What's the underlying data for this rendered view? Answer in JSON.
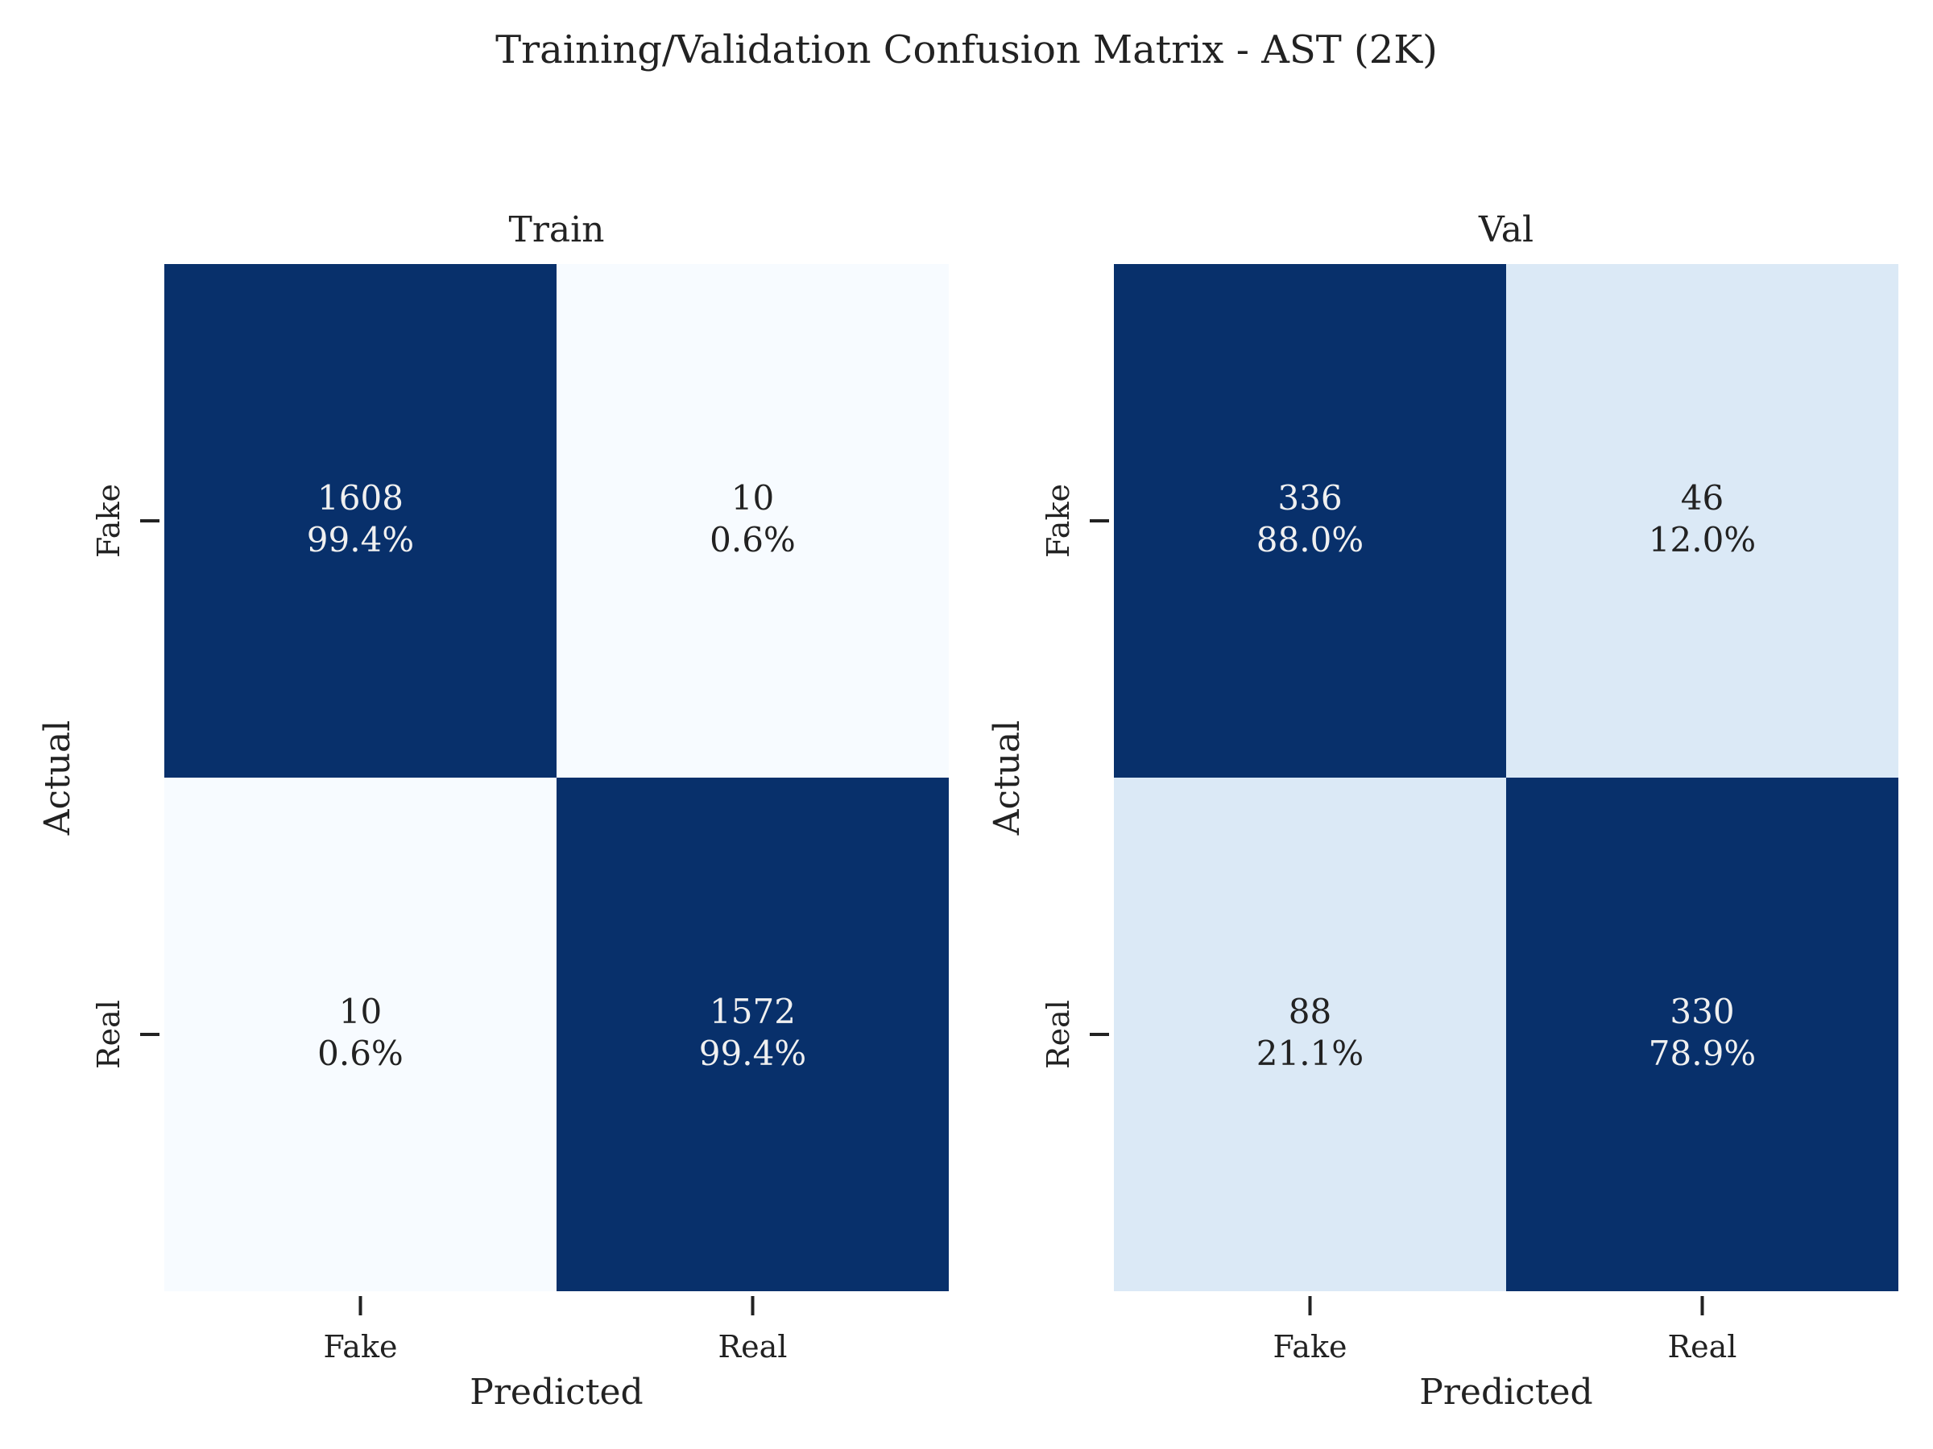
{
  "chart_data": {
    "title": "Training/Validation Confusion Matrix - AST (2K)",
    "colors": {
      "high": "#08306b",
      "mid": "#dbe9f6",
      "low": "#f7fbff",
      "text_dark": "#222222",
      "text_light": "#f0f0f0"
    },
    "panels": [
      {
        "type": "heatmap",
        "title": "Train",
        "xlabel": "Predicted",
        "ylabel": "Actual",
        "x_tick_labels": [
          "Fake",
          "Real"
        ],
        "y_tick_labels": [
          "Fake",
          "Real"
        ],
        "counts": [
          [
            1608,
            10
          ],
          [
            10,
            1572
          ]
        ],
        "percent_labels": [
          [
            "99.4%",
            "0.6%"
          ],
          [
            "0.6%",
            "99.4%"
          ]
        ]
      },
      {
        "type": "heatmap",
        "title": "Val",
        "xlabel": "Predicted",
        "ylabel": "Actual",
        "x_tick_labels": [
          "Fake",
          "Real"
        ],
        "y_tick_labels": [
          "Fake",
          "Real"
        ],
        "counts": [
          [
            336,
            46
          ],
          [
            88,
            330
          ]
        ],
        "percent_labels": [
          [
            "88.0%",
            "12.0%"
          ],
          [
            "21.1%",
            "78.9%"
          ]
        ]
      }
    ]
  }
}
